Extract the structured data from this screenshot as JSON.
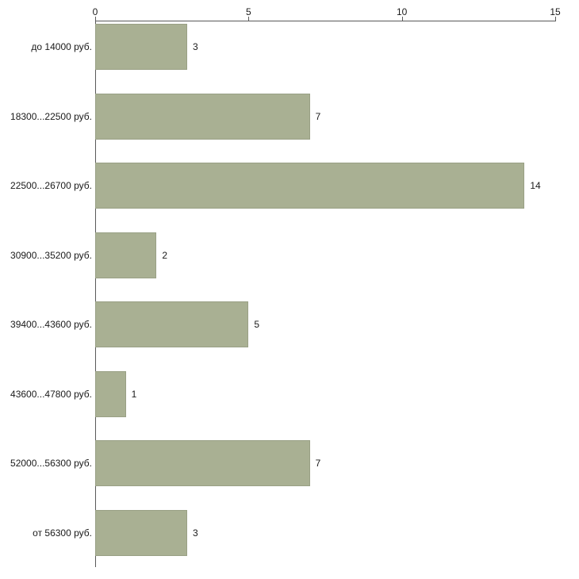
{
  "chart_data": {
    "type": "bar",
    "orientation": "horizontal",
    "title": "",
    "xlabel": "",
    "ylabel": "",
    "categories": [
      "до 14000 руб.",
      "18300...22500 руб.",
      "22500...26700 руб.",
      "30900...35200 руб.",
      "39400...43600 руб.",
      "43600...47800 руб.",
      "52000...56300 руб.",
      "от 56300 руб."
    ],
    "values": [
      3,
      7,
      14,
      2,
      5,
      1,
      7,
      3
    ],
    "xlim": [
      0,
      15
    ],
    "x_ticks": [
      0,
      5,
      10,
      15
    ],
    "grid": false,
    "legend": "none",
    "bar_color": "#A9B093",
    "bar_border_color": "#99A085",
    "axis_color": "#595959",
    "text_color": "#1A1A1A",
    "background": "#FFFFFF"
  }
}
